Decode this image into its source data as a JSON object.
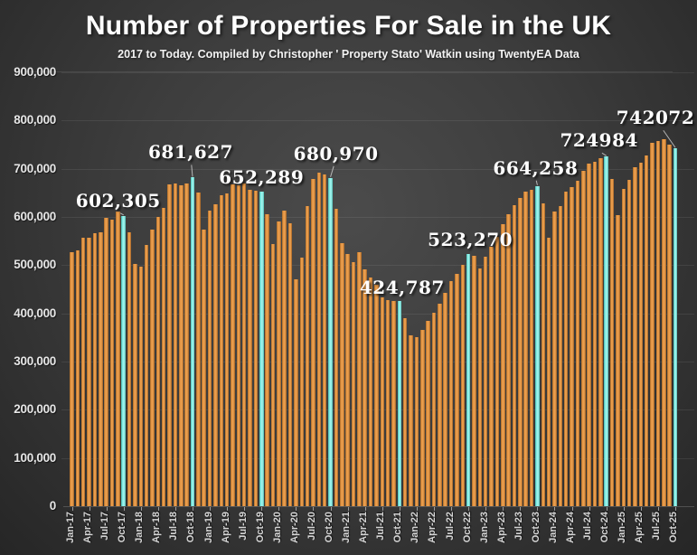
{
  "header": {
    "title": "Number of Properties For Sale in the UK",
    "subtitle": "2017 to Today. Compiled by Christopher ' Property Stato' Watkin using TwentyEA Data"
  },
  "chart_data": {
    "type": "bar",
    "title": "Number of Properties For Sale in the UK",
    "subtitle": "2017 to Today. Compiled by Christopher ' Property Stato' Watkin using TwentyEA Data",
    "xlabel": "",
    "ylabel": "",
    "ylim": [
      0,
      900000
    ],
    "ytick_step": 100000,
    "xtick_every": 3,
    "grid": true,
    "legend": "none",
    "highlight_rule": "every October bar is highlighted cyan",
    "x": [
      "Jan-17",
      "Feb-17",
      "Mar-17",
      "Apr-17",
      "May-17",
      "Jun-17",
      "Jul-17",
      "Aug-17",
      "Sep-17",
      "Oct-17",
      "Nov-17",
      "Dec-17",
      "Jan-18",
      "Feb-18",
      "Mar-18",
      "Apr-18",
      "May-18",
      "Jun-18",
      "Jul-18",
      "Aug-18",
      "Sep-18",
      "Oct-18",
      "Nov-18",
      "Dec-18",
      "Jan-19",
      "Feb-19",
      "Mar-19",
      "Apr-19",
      "May-19",
      "Jun-19",
      "Jul-19",
      "Aug-19",
      "Sep-19",
      "Oct-19",
      "Nov-19",
      "Dec-19",
      "Jan-20",
      "Feb-20",
      "Mar-20",
      "Apr-20",
      "May-20",
      "Jun-20",
      "Jul-20",
      "Aug-20",
      "Sep-20",
      "Oct-20",
      "Nov-20",
      "Dec-20",
      "Jan-21",
      "Feb-21",
      "Mar-21",
      "Apr-21",
      "May-21",
      "Jun-21",
      "Jul-21",
      "Aug-21",
      "Sep-21",
      "Oct-21",
      "Nov-21",
      "Dec-21",
      "Jan-22",
      "Feb-22",
      "Mar-22",
      "Apr-22",
      "May-22",
      "Jun-22",
      "Jul-22",
      "Aug-22",
      "Sep-22",
      "Oct-22",
      "Nov-22",
      "Dec-22",
      "Jan-23",
      "Feb-23",
      "Mar-23",
      "Apr-23",
      "May-23",
      "Jun-23",
      "Jul-23",
      "Aug-23",
      "Sep-23",
      "Oct-23",
      "Nov-23",
      "Dec-23",
      "Jan-24",
      "Feb-24",
      "Mar-24",
      "Apr-24",
      "May-24",
      "Jun-24",
      "Jul-24",
      "Aug-24",
      "Sep-24",
      "Oct-24",
      "Nov-24",
      "Dec-24",
      "Jan-25",
      "Feb-25",
      "Mar-25",
      "Apr-25",
      "May-25",
      "Jun-25",
      "Jul-25",
      "Aug-25",
      "Sep-25",
      "Oct-25"
    ],
    "values": [
      526000,
      531000,
      556000,
      557000,
      567000,
      569000,
      598000,
      594000,
      611000,
      602305,
      569000,
      503000,
      496000,
      542000,
      573000,
      600000,
      619000,
      668000,
      670000,
      666000,
      670000,
      681627,
      650000,
      573000,
      614000,
      626000,
      645000,
      648000,
      668000,
      666000,
      669000,
      656000,
      655000,
      652289,
      606000,
      544000,
      591000,
      614000,
      586000,
      471000,
      516000,
      623000,
      678000,
      691000,
      689000,
      680970,
      616000,
      545000,
      523000,
      507000,
      527000,
      492000,
      475000,
      459000,
      433000,
      428000,
      426000,
      424787,
      390000,
      355000,
      350000,
      366000,
      384000,
      402000,
      420000,
      443000,
      467000,
      481000,
      500000,
      523270,
      519000,
      494000,
      518000,
      539000,
      558000,
      585000,
      605000,
      625000,
      640000,
      652000,
      657000,
      664258,
      629000,
      556000,
      611000,
      622000,
      652000,
      662000,
      675000,
      695000,
      710000,
      715000,
      722000,
      724984,
      678000,
      603000,
      658000,
      676000,
      703000,
      713000,
      727000,
      754000,
      758000,
      761000,
      750000,
      742072
    ],
    "annotations": [
      {
        "x": "Oct-17",
        "text": "602,305",
        "dx": -6,
        "gap": 5
      },
      {
        "x": "Oct-18",
        "text": "681,627",
        "dx": -2,
        "gap": 16
      },
      {
        "x": "Oct-19",
        "text": "652,289",
        "dx": 0,
        "gap": 4
      },
      {
        "x": "Oct-20",
        "text": "680,970",
        "dx": 6,
        "gap": 15
      },
      {
        "x": "Oct-21",
        "text": "424,787",
        "dx": 3,
        "gap": 3
      },
      {
        "x": "Oct-22",
        "text": "523,270",
        "dx": 2,
        "gap": 4
      },
      {
        "x": "Oct-23",
        "text": "664,258",
        "dx": -2,
        "gap": 8
      },
      {
        "x": "Oct-24",
        "text": "724984",
        "dx": -8,
        "gap": 6
      },
      {
        "x": "Oct-25",
        "text": "742072",
        "dx": -22,
        "gap": 22
      }
    ],
    "colors": {
      "bar": "#e2913c",
      "highlight": "#7fe9e1",
      "background_center": "#4b4b4b",
      "background_edge": "#262626",
      "title_text": "#ffffff",
      "axis_text": "#d5d5d5",
      "annotation_text": "#ffffff",
      "gridline": "rgba(255,255,255,0.08)",
      "leader_line": "#b5b5b5"
    }
  }
}
